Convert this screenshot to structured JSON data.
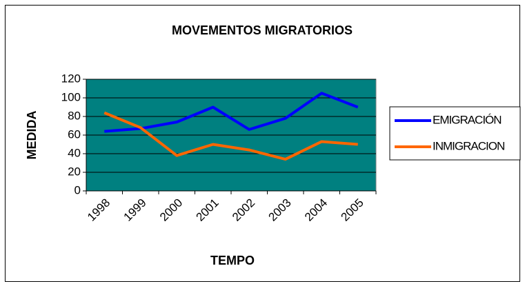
{
  "chart_data": {
    "type": "line",
    "title": "MOVEMENTOS MIGRATORIOS",
    "xlabel": "TEMPO",
    "ylabel": "MEDIDA",
    "categories": [
      "1998",
      "1999",
      "2000",
      "2001",
      "2002",
      "2003",
      "2004",
      "2005"
    ],
    "series": [
      {
        "name": "EMIGRACIÓN",
        "color": "#0000ff",
        "values": [
          64,
          67,
          74,
          90,
          66,
          78,
          105,
          90
        ]
      },
      {
        "name": "INMIGRACION",
        "color": "#ff6600",
        "values": [
          84,
          68,
          38,
          50,
          44,
          34,
          53,
          50
        ]
      }
    ],
    "ylim": [
      0,
      120
    ],
    "yticks": [
      0,
      20,
      40,
      60,
      80,
      100,
      120
    ],
    "grid": true,
    "legend": "right",
    "plot_background": "#008080"
  }
}
